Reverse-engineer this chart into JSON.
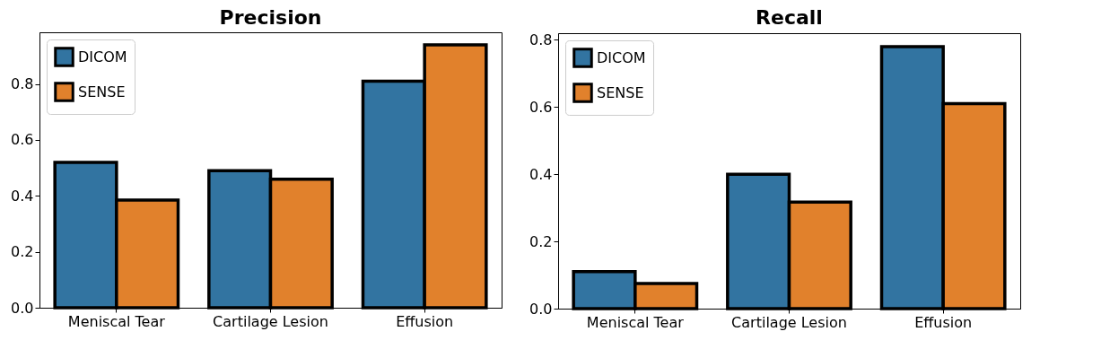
{
  "chart_data": [
    {
      "type": "bar",
      "title": "Precision",
      "categories": [
        "Meniscal Tear",
        "Cartilage Lesion",
        "Effusion"
      ],
      "series": [
        {
          "name": "DICOM",
          "color": "#3274a1",
          "values": [
            0.52,
            0.49,
            0.81
          ]
        },
        {
          "name": "SENSE",
          "color": "#e1812c",
          "values": [
            0.385,
            0.46,
            0.94
          ]
        }
      ],
      "ylim": [
        0,
        0.985
      ],
      "yticks": [
        {
          "value": 0,
          "label": "0.0"
        },
        {
          "value": 0.2,
          "label": "0.2"
        },
        {
          "value": 0.4,
          "label": "0.4"
        },
        {
          "value": 0.6,
          "label": "0.6"
        },
        {
          "value": 0.8,
          "label": "0.8"
        }
      ],
      "legend": "top left"
    },
    {
      "type": "bar",
      "title": "Recall",
      "categories": [
        "Meniscal Tear",
        "Cartilage Lesion",
        "Effusion"
      ],
      "series": [
        {
          "name": "DICOM",
          "color": "#3274a1",
          "values": [
            0.11,
            0.4,
            0.78
          ]
        },
        {
          "name": "SENSE",
          "color": "#e1812c",
          "values": [
            0.075,
            0.317,
            0.61
          ]
        }
      ],
      "ylim": [
        0,
        0.82
      ],
      "yticks": [
        {
          "value": 0,
          "label": "0.0"
        },
        {
          "value": 0.2,
          "label": "0.2"
        },
        {
          "value": 0.4,
          "label": "0.4"
        },
        {
          "value": 0.6,
          "label": "0.6"
        },
        {
          "value": 0.8,
          "label": "0.8"
        }
      ],
      "legend": "top left"
    }
  ]
}
